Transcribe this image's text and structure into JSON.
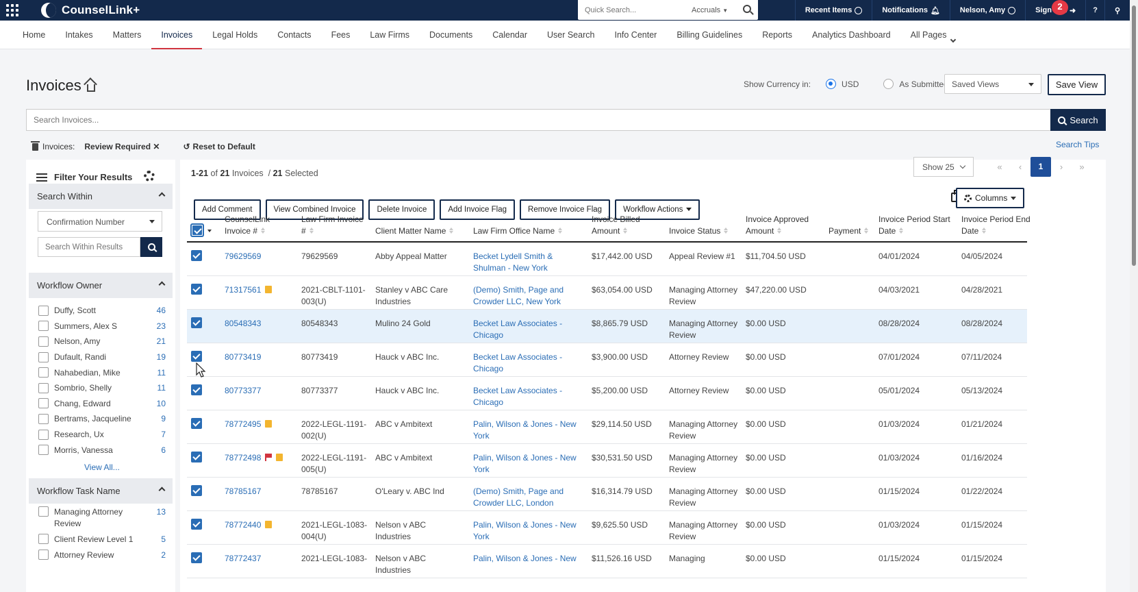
{
  "app": {
    "name": "CounselLink+",
    "notification_count": "2"
  },
  "topbar": {
    "quick_search_placeholder": "Quick Search...",
    "quick_search_scope": "Accruals",
    "recent_items": "Recent Items",
    "notifications": "Notifications",
    "user": "Nelson, Amy",
    "sign_out": "Sign Out"
  },
  "nav": {
    "items": [
      "Home",
      "Intakes",
      "Matters",
      "Invoices",
      "Legal Holds",
      "Contacts",
      "Fees",
      "Law Firms",
      "Documents",
      "Calendar",
      "User Search",
      "Info Center",
      "Billing Guidelines",
      "Reports",
      "Analytics Dashboard",
      "All Pages"
    ],
    "active": "Invoices"
  },
  "page": {
    "title": "Invoices",
    "show_currency_label": "Show Currency in:",
    "currency_usd": "USD",
    "currency_submitted": "As Submitted",
    "saved_views": "Saved Views",
    "save_view": "Save View",
    "search_placeholder": "Search Invoices...",
    "search_button": "Search",
    "filter_prefix": "Invoices:",
    "filter_chip": "Review Required",
    "reset": "Reset to Default",
    "search_tips": "Search Tips"
  },
  "sidebar": {
    "title": "Filter Your Results",
    "search_within": {
      "heading": "Search Within",
      "select_value": "Confirmation Number",
      "input_placeholder": "Search Within Results"
    },
    "workflow_owner": {
      "heading": "Workflow Owner",
      "items": [
        {
          "name": "Duffy, Scott",
          "count": "46"
        },
        {
          "name": "Summers, Alex S",
          "count": "23"
        },
        {
          "name": "Nelson, Amy",
          "count": "21"
        },
        {
          "name": "Dufault, Randi",
          "count": "19"
        },
        {
          "name": "Nahabedian, Mike",
          "count": "11"
        },
        {
          "name": "Sombrio, Shelly",
          "count": "11"
        },
        {
          "name": "Chang, Edward",
          "count": "10"
        },
        {
          "name": "Bertrams, Jacqueline",
          "count": "9"
        },
        {
          "name": "Research, Ux",
          "count": "7"
        },
        {
          "name": "Morris, Vanessa",
          "count": "6"
        }
      ],
      "view_all": "View All..."
    },
    "workflow_task": {
      "heading": "Workflow Task Name",
      "items": [
        {
          "name": "Managing Attorney Review",
          "count": "13"
        },
        {
          "name": "Client Review Level 1",
          "count": "5"
        },
        {
          "name": "Attorney Review",
          "count": "2"
        }
      ]
    }
  },
  "results": {
    "range": "1-21",
    "of_label": "of",
    "total": "21",
    "invoices_label": "Invoices",
    "separator": "/",
    "selected_count": "21",
    "selected_label": "Selected",
    "page_size": "Show 25",
    "current_page": "1"
  },
  "toolbar": {
    "add_comment": "Add Comment",
    "view_combined": "View Combined Invoice",
    "delete_invoice": "Delete Invoice",
    "add_flag": "Add Invoice Flag",
    "remove_flag": "Remove Invoice Flag",
    "workflow_actions": "Workflow Actions",
    "columns": "Columns"
  },
  "table": {
    "headers": {
      "counsellink": "CounselLink Invoice #",
      "law_firm_invoice": "Law Firm Invoice #",
      "client_matter": "Client Matter Name",
      "office": "Law Firm Office Name",
      "billed": "Invoice Billed Amount",
      "status": "Invoice Status",
      "approved": "Invoice Approved Amount",
      "payment": "Payment",
      "start": "Invoice Period Start Date",
      "end": "Invoice Period End Date"
    },
    "rows": [
      {
        "id": "79629569",
        "lf": "79629569",
        "matter": "Abby Appeal Matter",
        "office": "Becket Lydell Smith & Shulman - New York",
        "billed": "$17,442.00 USD",
        "status": "Appeal Review #1",
        "approved": "$11,704.50 USD",
        "payment": "",
        "start": "04/01/2024",
        "end": "04/05/2024",
        "note": false,
        "flag": false
      },
      {
        "id": "71317561",
        "lf": "2021-CBLT-1101-003(U)",
        "matter": "Stanley v ABC Care Industries",
        "office": "(Demo) Smith, Page and Crowder LLC, New York",
        "billed": "$63,054.00 USD",
        "status": "Managing Attorney Review",
        "approved": "$47,220.00 USD",
        "payment": "",
        "start": "04/03/2021",
        "end": "04/28/2021",
        "note": true,
        "flag": false
      },
      {
        "id": "80548343",
        "lf": "80548343",
        "matter": "Mulino 24 Gold",
        "office": "Becket Law Associates - Chicago",
        "billed": "$8,865.79 USD",
        "status": "Managing Attorney Review",
        "approved": "$0.00 USD",
        "payment": "",
        "start": "08/28/2024",
        "end": "08/28/2024",
        "note": false,
        "flag": false
      },
      {
        "id": "80773419",
        "lf": "80773419",
        "matter": "Hauck v ABC Inc.",
        "office": "Becket Law Associates - Chicago",
        "billed": "$3,900.00 USD",
        "status": "Attorney Review",
        "approved": "$0.00 USD",
        "payment": "",
        "start": "07/01/2024",
        "end": "07/11/2024",
        "note": false,
        "flag": false
      },
      {
        "id": "80773377",
        "lf": "80773377",
        "matter": "Hauck v ABC Inc.",
        "office": "Becket Law Associates - Chicago",
        "billed": "$5,200.00 USD",
        "status": "Attorney Review",
        "approved": "$0.00 USD",
        "payment": "",
        "start": "05/01/2024",
        "end": "05/13/2024",
        "note": false,
        "flag": false
      },
      {
        "id": "78772495",
        "lf": "2022-LEGL-1191-002(U)",
        "matter": "ABC v Ambitext",
        "office": "Palin, Wilson & Jones - New York",
        "billed": "$29,114.50 USD",
        "status": "Managing Attorney Review",
        "approved": "$0.00 USD",
        "payment": "",
        "start": "01/03/2024",
        "end": "01/21/2024",
        "note": true,
        "flag": false
      },
      {
        "id": "78772498",
        "lf": "2022-LEGL-1191-005(U)",
        "matter": "ABC v Ambitext",
        "office": "Palin, Wilson & Jones - New York",
        "billed": "$30,531.50 USD",
        "status": "Managing Attorney Review",
        "approved": "$0.00 USD",
        "payment": "",
        "start": "01/03/2024",
        "end": "01/16/2024",
        "note": true,
        "flag": true
      },
      {
        "id": "78785167",
        "lf": "78785167",
        "matter": "O'Leary v. ABC Ind",
        "office": "(Demo) Smith, Page and Crowder LLC, London",
        "billed": "$16,314.79 USD",
        "status": "Managing Attorney Review",
        "approved": "$0.00 USD",
        "payment": "",
        "start": "01/15/2024",
        "end": "01/22/2024",
        "note": false,
        "flag": false
      },
      {
        "id": "78772440",
        "lf": "2021-LEGL-1083-004(U)",
        "matter": "Nelson v ABC Industries",
        "office": "Palin, Wilson & Jones - New York",
        "billed": "$9,625.50 USD",
        "status": "Managing Attorney Review",
        "approved": "$0.00 USD",
        "payment": "",
        "start": "01/03/2024",
        "end": "01/15/2024",
        "note": true,
        "flag": false
      },
      {
        "id": "78772437",
        "lf": "2021-LEGL-1083-",
        "matter": "Nelson v ABC Industries",
        "office": "Palin, Wilson & Jones - New",
        "billed": "$11,526.16 USD",
        "status": "Managing",
        "approved": "$0.00 USD",
        "payment": "",
        "start": "01/15/2024",
        "end": "01/15/2024",
        "note": false,
        "flag": false
      }
    ],
    "highlighted_row": 2
  }
}
